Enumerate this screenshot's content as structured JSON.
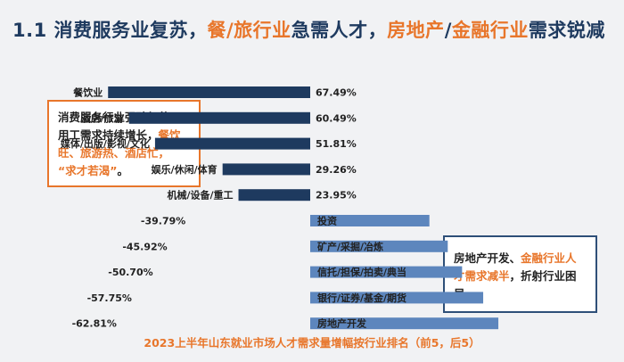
{
  "title": {
    "prefix": "1.1 消费服务业复苏，",
    "hl1": "餐/旅行业",
    "middle": "急需人才，",
    "hl2a": "房地产",
    "sep": "/",
    "hl2b": "金融行业",
    "suffix": "需求锐减"
  },
  "left_note": {
    "line1": "消费服务行业强劲复苏，",
    "line2_pre": "用工需求持续增长，",
    "line2_hl": "餐饮",
    "line3_hl": "旺、旅游热、酒店忙，",
    "line4_hl": "“求才若渴”",
    "line4_post": "。"
  },
  "right_note": {
    "pre": "房地产开发、",
    "hl": "金融行业人才需求减半",
    "post": "，折射行业困局。"
  },
  "colors": {
    "positive_bar": "#1e3a5f",
    "negative_bar": "#5d86bd",
    "accent": "#e8762b"
  },
  "chart_data": {
    "type": "bar",
    "orientation": "horizontal",
    "title": "2023上半年山东就业市场人才需求量增幅按行业排名（前5，后5）",
    "categories": [
      "餐饮业",
      "酒店/旅游",
      "媒体/出版/影视/文化",
      "娱乐/休闲/体育",
      "机械/设备/重工",
      "投资",
      "矿产/采掘/冶炼",
      "信托/担保/拍卖/典当",
      "银行/证券/基金/期货",
      "房地产开发"
    ],
    "values": [
      67.49,
      60.49,
      51.81,
      29.26,
      23.95,
      -39.79,
      -45.92,
      -50.7,
      -57.75,
      -62.81
    ],
    "labels": [
      "67.49%",
      "60.49%",
      "51.81%",
      "29.26%",
      "23.95%",
      "-39.79%",
      "-45.92%",
      "-50.70%",
      "-57.75%",
      "-62.81%"
    ],
    "xlabel": "",
    "ylabel": "",
    "grid": false,
    "legend": "none"
  }
}
